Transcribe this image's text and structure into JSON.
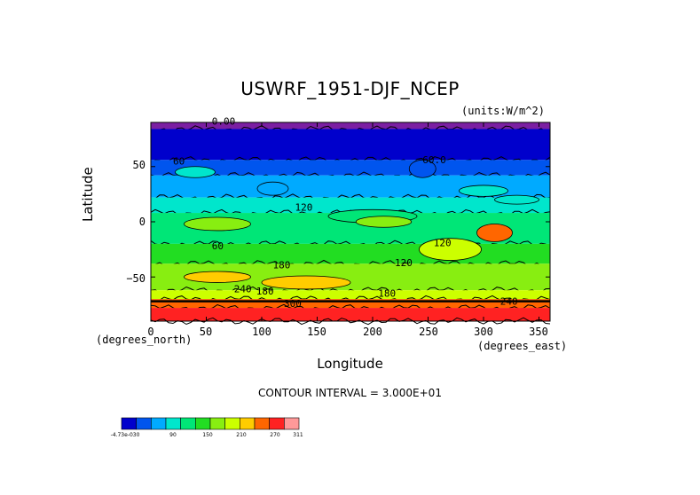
{
  "chart_data": {
    "type": "heatmap",
    "title": "USWRF_1951-DJF_NCEP",
    "units": "(units:W/m^2)",
    "xlabel": "Longitude",
    "ylabel": "Latitude",
    "x_unit_label": "(degrees_east)",
    "y_unit_label": "(degrees_north)",
    "xlim": [
      0,
      360
    ],
    "ylim": [
      -90,
      90
    ],
    "x_ticks": [
      "0",
      "50",
      "100",
      "150",
      "200",
      "250",
      "300",
      "350"
    ],
    "y_ticks": [
      "50",
      "0",
      "−50"
    ],
    "contour_interval_text": "CONTOUR INTERVAL = 3.000E+01",
    "colorbar": {
      "colors": [
        "#0000cc",
        "#0055ee",
        "#00aaff",
        "#00e6cc",
        "#00e677",
        "#22dd22",
        "#88ee11",
        "#ccff00",
        "#ffcc00",
        "#ff6600",
        "#ff2222",
        "#ff9999"
      ],
      "tick_labels": [
        "-4.73e-030",
        "90",
        "150",
        "210",
        "270",
        "311"
      ]
    },
    "contour_labels": [
      "0.00",
      "60",
      "60.0",
      "60",
      "120",
      "120",
      "120",
      "180",
      "180",
      "180",
      "240",
      "240",
      "300"
    ],
    "zonal_bands": [
      {
        "lat_top": 90,
        "lat_bottom": 84,
        "level": 0
      },
      {
        "lat_top": 84,
        "lat_bottom": 56,
        "level": 1
      },
      {
        "lat_top": 56,
        "lat_bottom": 42,
        "level": 2
      },
      {
        "lat_top": 42,
        "lat_bottom": 22,
        "level": 3
      },
      {
        "lat_top": 22,
        "lat_bottom": 8,
        "level": 4
      },
      {
        "lat_top": 8,
        "lat_bottom": -20,
        "level": 5
      },
      {
        "lat_top": -20,
        "lat_bottom": -38,
        "level": 6
      },
      {
        "lat_top": -38,
        "lat_bottom": -62,
        "level": 7
      },
      {
        "lat_top": -62,
        "lat_bottom": -70,
        "level": 8
      },
      {
        "lat_top": -70,
        "lat_bottom": -78,
        "level": 10
      },
      {
        "lat_top": -78,
        "lat_bottom": -90,
        "level": 11
      }
    ]
  }
}
